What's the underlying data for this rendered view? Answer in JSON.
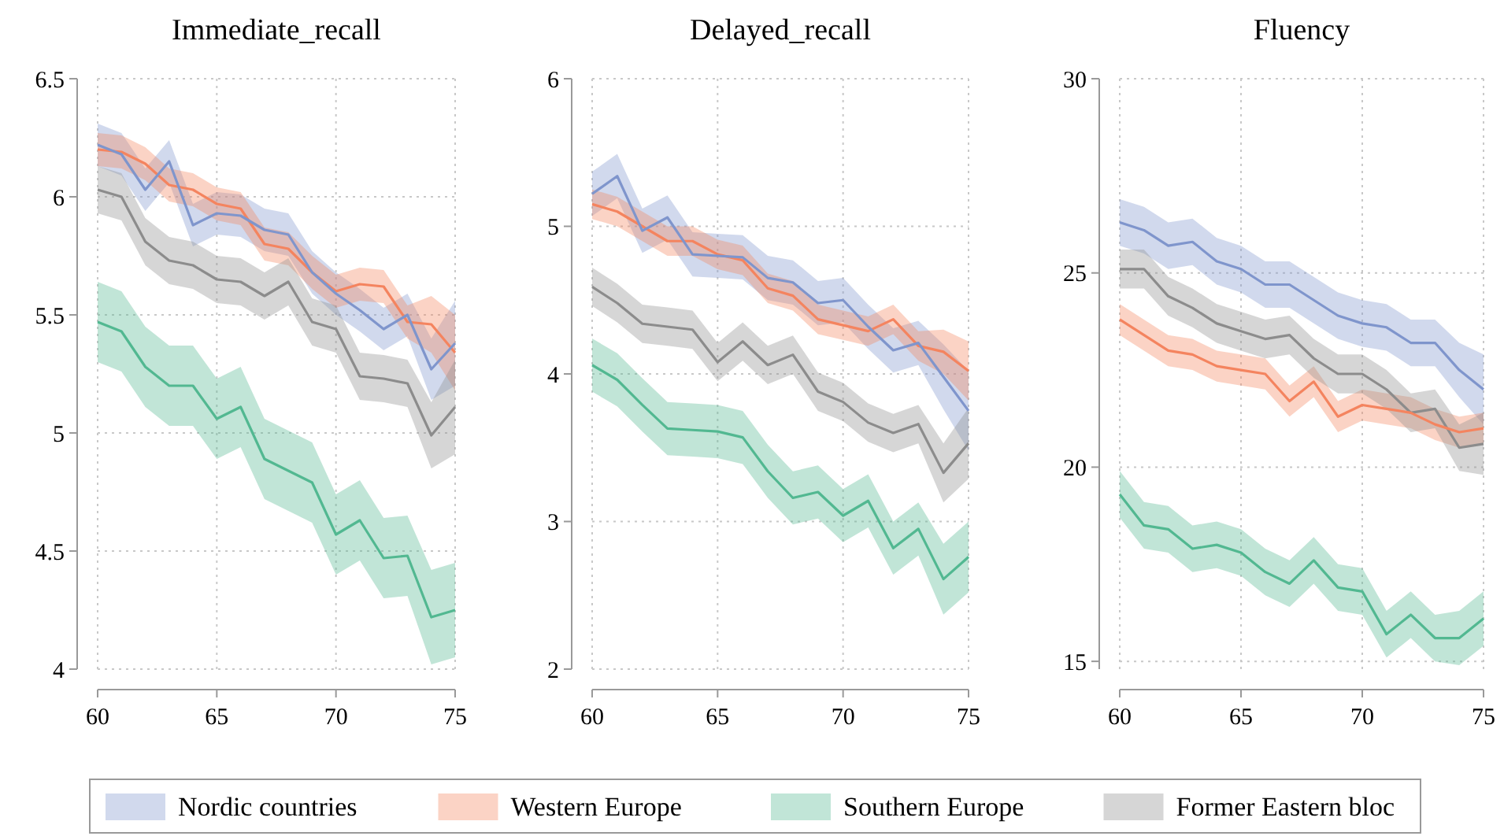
{
  "chart_data": [
    {
      "type": "line",
      "title": "Immediate_recall",
      "x": [
        60,
        61,
        62,
        63,
        64,
        65,
        66,
        67,
        68,
        69,
        70,
        71,
        72,
        73,
        74,
        75
      ],
      "xlim": [
        60,
        75
      ],
      "xticks": [
        60,
        65,
        70,
        75
      ],
      "ylim": [
        4,
        6.5
      ],
      "yticks": [
        4,
        {
          "value": 4.5,
          "label": "4.5"
        },
        5,
        {
          "value": 5.5,
          "label": "5.5"
        },
        6,
        {
          "value": 6.5,
          "label": "6.5"
        }
      ],
      "grid": true,
      "legend": "bottom",
      "line_style": "solid",
      "marker": "none",
      "series": [
        {
          "name": "Nordic countries",
          "color": "#7f95cc",
          "values": [
            6.22,
            6.18,
            6.03,
            6.15,
            5.88,
            5.93,
            5.92,
            5.86,
            5.84,
            5.68,
            5.59,
            5.52,
            5.44,
            5.5,
            5.27,
            5.38
          ],
          "lower": [
            6.13,
            6.09,
            5.94,
            6.06,
            5.79,
            5.84,
            5.83,
            5.77,
            5.75,
            5.59,
            5.5,
            5.43,
            5.35,
            5.41,
            5.14,
            5.2
          ],
          "upper": [
            6.31,
            6.27,
            6.12,
            6.24,
            5.97,
            6.02,
            6.01,
            5.95,
            5.93,
            5.77,
            5.68,
            5.61,
            5.53,
            5.59,
            5.4,
            5.56
          ]
        },
        {
          "name": "Western Europe",
          "color": "#f4845f",
          "values": [
            6.2,
            6.19,
            6.14,
            6.05,
            6.03,
            5.97,
            5.95,
            5.8,
            5.78,
            5.68,
            5.6,
            5.63,
            5.62,
            5.47,
            5.46,
            5.34
          ],
          "lower": [
            6.13,
            6.12,
            6.07,
            5.98,
            5.96,
            5.9,
            5.88,
            5.73,
            5.71,
            5.61,
            5.53,
            5.56,
            5.55,
            5.4,
            5.34,
            5.18
          ],
          "upper": [
            6.27,
            6.26,
            6.21,
            6.12,
            6.1,
            6.04,
            6.02,
            5.87,
            5.85,
            5.75,
            5.67,
            5.7,
            5.69,
            5.54,
            5.58,
            5.5
          ]
        },
        {
          "name": "Southern Europe",
          "color": "#52b891",
          "values": [
            5.47,
            5.43,
            5.28,
            5.2,
            5.2,
            5.06,
            5.11,
            4.89,
            4.84,
            4.79,
            4.57,
            4.63,
            4.47,
            4.48,
            4.22,
            4.25
          ],
          "lower": [
            5.3,
            5.26,
            5.11,
            5.03,
            5.03,
            4.89,
            4.94,
            4.72,
            4.67,
            4.62,
            4.4,
            4.46,
            4.3,
            4.31,
            4.02,
            4.05
          ],
          "upper": [
            5.64,
            5.6,
            5.45,
            5.37,
            5.37,
            5.23,
            5.28,
            5.06,
            5.01,
            4.96,
            4.74,
            4.8,
            4.64,
            4.65,
            4.42,
            4.45
          ]
        },
        {
          "name": "Former Eastern bloc",
          "color": "#8c8c8c",
          "values": [
            6.03,
            6.0,
            5.81,
            5.73,
            5.71,
            5.65,
            5.64,
            5.58,
            5.64,
            5.47,
            5.44,
            5.24,
            5.23,
            5.21,
            4.99,
            5.11
          ],
          "lower": [
            5.93,
            5.9,
            5.71,
            5.63,
            5.61,
            5.55,
            5.54,
            5.48,
            5.54,
            5.37,
            5.34,
            5.14,
            5.13,
            5.11,
            4.85,
            4.91
          ],
          "upper": [
            6.13,
            6.1,
            5.91,
            5.83,
            5.81,
            5.75,
            5.74,
            5.68,
            5.74,
            5.57,
            5.54,
            5.34,
            5.33,
            5.31,
            5.13,
            5.31
          ]
        }
      ]
    },
    {
      "type": "line",
      "title": "Delayed_recall",
      "x": [
        60,
        61,
        62,
        63,
        64,
        65,
        66,
        67,
        68,
        69,
        70,
        71,
        72,
        73,
        74,
        75
      ],
      "xlim": [
        60,
        75
      ],
      "xticks": [
        60,
        65,
        70,
        75
      ],
      "ylim": [
        2,
        6
      ],
      "yticks": [
        2,
        3,
        4,
        5,
        6
      ],
      "grid": true,
      "line_style": "solid",
      "marker": "none",
      "series": [
        {
          "color": "#7f95cc",
          "values": [
            5.22,
            5.34,
            4.97,
            5.06,
            4.81,
            4.8,
            4.79,
            4.65,
            4.62,
            4.48,
            4.5,
            4.32,
            4.16,
            4.21,
            3.98,
            3.75
          ],
          "lower": [
            5.07,
            5.19,
            4.82,
            4.91,
            4.66,
            4.65,
            4.64,
            4.5,
            4.47,
            4.33,
            4.35,
            4.17,
            4.01,
            4.06,
            3.76,
            3.48
          ],
          "upper": [
            5.37,
            5.49,
            5.12,
            5.21,
            4.96,
            4.95,
            4.94,
            4.8,
            4.77,
            4.63,
            4.65,
            4.47,
            4.31,
            4.36,
            4.2,
            4.02
          ]
        },
        {
          "color": "#f4845f",
          "values": [
            5.15,
            5.1,
            5.0,
            4.9,
            4.9,
            4.81,
            4.77,
            4.58,
            4.53,
            4.37,
            4.33,
            4.29,
            4.37,
            4.19,
            4.15,
            4.02
          ],
          "lower": [
            5.05,
            5.0,
            4.9,
            4.8,
            4.8,
            4.71,
            4.67,
            4.48,
            4.43,
            4.27,
            4.23,
            4.19,
            4.27,
            4.09,
            4.0,
            3.82
          ],
          "upper": [
            5.25,
            5.2,
            5.1,
            5.0,
            5.0,
            4.91,
            4.87,
            4.68,
            4.63,
            4.47,
            4.43,
            4.39,
            4.47,
            4.29,
            4.3,
            4.22
          ]
        },
        {
          "color": "#52b891",
          "values": [
            4.06,
            3.96,
            3.79,
            3.63,
            3.62,
            3.61,
            3.57,
            3.34,
            3.16,
            3.2,
            3.04,
            3.14,
            2.82,
            2.95,
            2.61,
            2.76
          ],
          "lower": [
            3.88,
            3.78,
            3.61,
            3.45,
            3.44,
            3.43,
            3.39,
            3.16,
            2.98,
            3.02,
            2.86,
            2.96,
            2.64,
            2.77,
            2.37,
            2.52
          ],
          "upper": [
            4.24,
            4.14,
            3.97,
            3.81,
            3.8,
            3.79,
            3.75,
            3.52,
            3.34,
            3.38,
            3.22,
            3.32,
            3.0,
            3.13,
            2.85,
            3.0
          ]
        },
        {
          "color": "#8c8c8c",
          "values": [
            4.59,
            4.48,
            4.34,
            4.32,
            4.3,
            4.08,
            4.22,
            4.06,
            4.13,
            3.88,
            3.81,
            3.67,
            3.6,
            3.66,
            3.33,
            3.53
          ],
          "lower": [
            4.46,
            4.35,
            4.21,
            4.19,
            4.17,
            3.95,
            4.09,
            3.93,
            4.0,
            3.75,
            3.68,
            3.54,
            3.47,
            3.53,
            3.13,
            3.29
          ],
          "upper": [
            4.72,
            4.61,
            4.47,
            4.45,
            4.43,
            4.21,
            4.35,
            4.19,
            4.26,
            4.01,
            3.94,
            3.8,
            3.73,
            3.79,
            3.53,
            3.77
          ]
        }
      ]
    },
    {
      "type": "line",
      "title": "Fluency",
      "x": [
        60,
        61,
        62,
        63,
        64,
        65,
        66,
        67,
        68,
        69,
        70,
        71,
        72,
        73,
        74,
        75
      ],
      "xlim": [
        60,
        75
      ],
      "xticks": [
        60,
        65,
        70,
        75
      ],
      "ylim": [
        14.8,
        30
      ],
      "yticks": [
        15,
        20,
        25,
        30
      ],
      "grid": true,
      "line_style": "solid",
      "marker": "none",
      "series": [
        {
          "color": "#7f95cc",
          "values": [
            26.3,
            26.1,
            25.7,
            25.8,
            25.3,
            25.1,
            24.7,
            24.7,
            24.3,
            23.9,
            23.7,
            23.6,
            23.2,
            23.2,
            22.5,
            22.0
          ],
          "lower": [
            25.7,
            25.5,
            25.1,
            25.2,
            24.7,
            24.5,
            24.1,
            24.1,
            23.7,
            23.3,
            23.1,
            23.0,
            22.6,
            22.6,
            21.8,
            21.1
          ],
          "upper": [
            26.9,
            26.7,
            26.3,
            26.4,
            25.9,
            25.7,
            25.3,
            25.3,
            24.9,
            24.5,
            24.3,
            24.2,
            23.8,
            23.8,
            23.2,
            22.9
          ]
        },
        {
          "color": "#f4845f",
          "values": [
            23.8,
            23.4,
            23.0,
            22.9,
            22.6,
            22.5,
            22.4,
            21.7,
            22.2,
            21.3,
            21.6,
            21.5,
            21.4,
            21.1,
            20.9,
            21.0
          ],
          "lower": [
            23.4,
            23.0,
            22.6,
            22.5,
            22.2,
            22.1,
            22.0,
            21.3,
            21.8,
            20.9,
            21.2,
            21.1,
            21.0,
            20.7,
            20.5,
            20.6
          ],
          "upper": [
            24.2,
            23.8,
            23.4,
            23.3,
            23.0,
            22.9,
            22.8,
            22.1,
            22.6,
            21.7,
            22.0,
            21.9,
            21.8,
            21.5,
            21.3,
            21.4
          ]
        },
        {
          "color": "#52b891",
          "values": [
            19.3,
            18.5,
            18.4,
            17.9,
            18.0,
            17.8,
            17.3,
            17.0,
            17.6,
            16.9,
            16.8,
            15.7,
            16.2,
            15.6,
            15.6,
            16.1
          ],
          "lower": [
            18.7,
            17.9,
            17.8,
            17.3,
            17.4,
            17.2,
            16.7,
            16.4,
            17.0,
            16.3,
            16.2,
            15.1,
            15.6,
            15.0,
            14.9,
            15.4
          ],
          "upper": [
            19.9,
            19.1,
            19.0,
            18.5,
            18.6,
            18.4,
            17.9,
            17.6,
            18.2,
            17.5,
            17.4,
            16.3,
            16.8,
            16.2,
            16.3,
            16.8
          ]
        },
        {
          "color": "#8c8c8c",
          "values": [
            25.1,
            25.1,
            24.4,
            24.1,
            23.7,
            23.5,
            23.3,
            23.4,
            22.8,
            22.4,
            22.4,
            22.0,
            21.4,
            21.5,
            20.5,
            20.6
          ],
          "lower": [
            24.6,
            24.6,
            23.9,
            23.6,
            23.2,
            23.0,
            22.8,
            22.9,
            22.3,
            21.9,
            21.9,
            21.5,
            20.9,
            21.0,
            19.9,
            19.8
          ],
          "upper": [
            25.6,
            25.6,
            24.9,
            24.6,
            24.2,
            24.0,
            23.8,
            23.9,
            23.3,
            22.9,
            22.9,
            22.5,
            21.9,
            22.0,
            21.1,
            21.4
          ]
        }
      ]
    }
  ]
}
